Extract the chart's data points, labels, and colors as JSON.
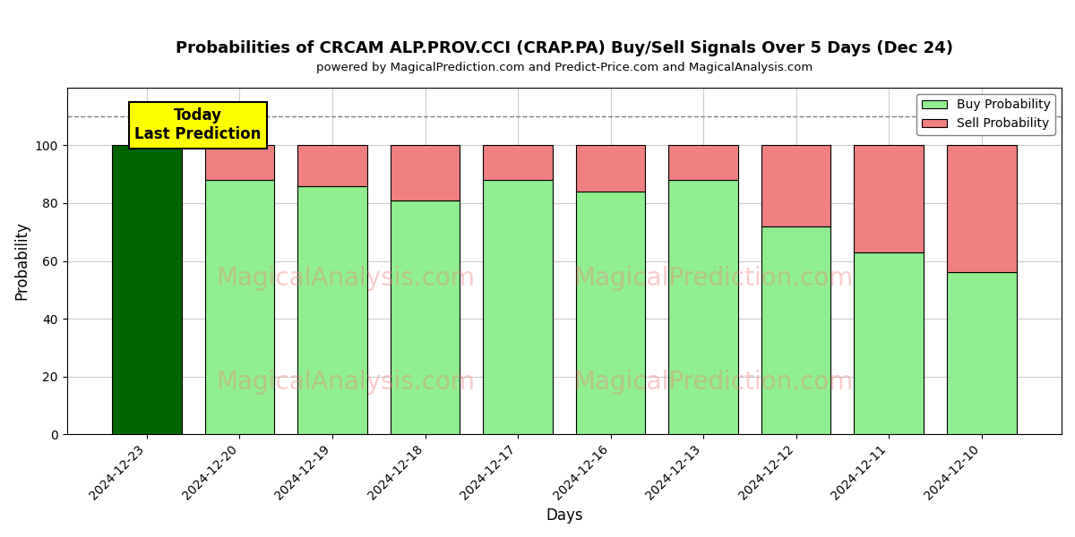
{
  "title": "Probabilities of CRCAM ALP.PROV.CCI (CRAP.PA) Buy/Sell Signals Over 5 Days (Dec 24)",
  "subtitle": "powered by MagicalPrediction.com and Predict-Price.com and MagicalAnalysis.com",
  "xlabel": "Days",
  "ylabel": "Probability",
  "categories": [
    "2024-12-23",
    "2024-12-20",
    "2024-12-19",
    "2024-12-18",
    "2024-12-17",
    "2024-12-16",
    "2024-12-13",
    "2024-12-12",
    "2024-12-11",
    "2024-12-10"
  ],
  "buy_values": [
    100,
    88,
    86,
    81,
    88,
    84,
    88,
    72,
    63,
    56
  ],
  "sell_values": [
    0,
    12,
    14,
    19,
    12,
    16,
    12,
    28,
    37,
    44
  ],
  "today_bar_color": "#006400",
  "buy_bar_color": "#90EE90",
  "sell_bar_color": "#F08080",
  "today_label": "Today\nLast Prediction",
  "legend_buy": "Buy Probability",
  "legend_sell": "Sell Probability",
  "ylim": [
    0,
    120
  ],
  "yticks": [
    0,
    20,
    40,
    60,
    80,
    100
  ],
  "dashed_line_y": 110,
  "background_color": "#ffffff",
  "grid_color": "#cccccc"
}
